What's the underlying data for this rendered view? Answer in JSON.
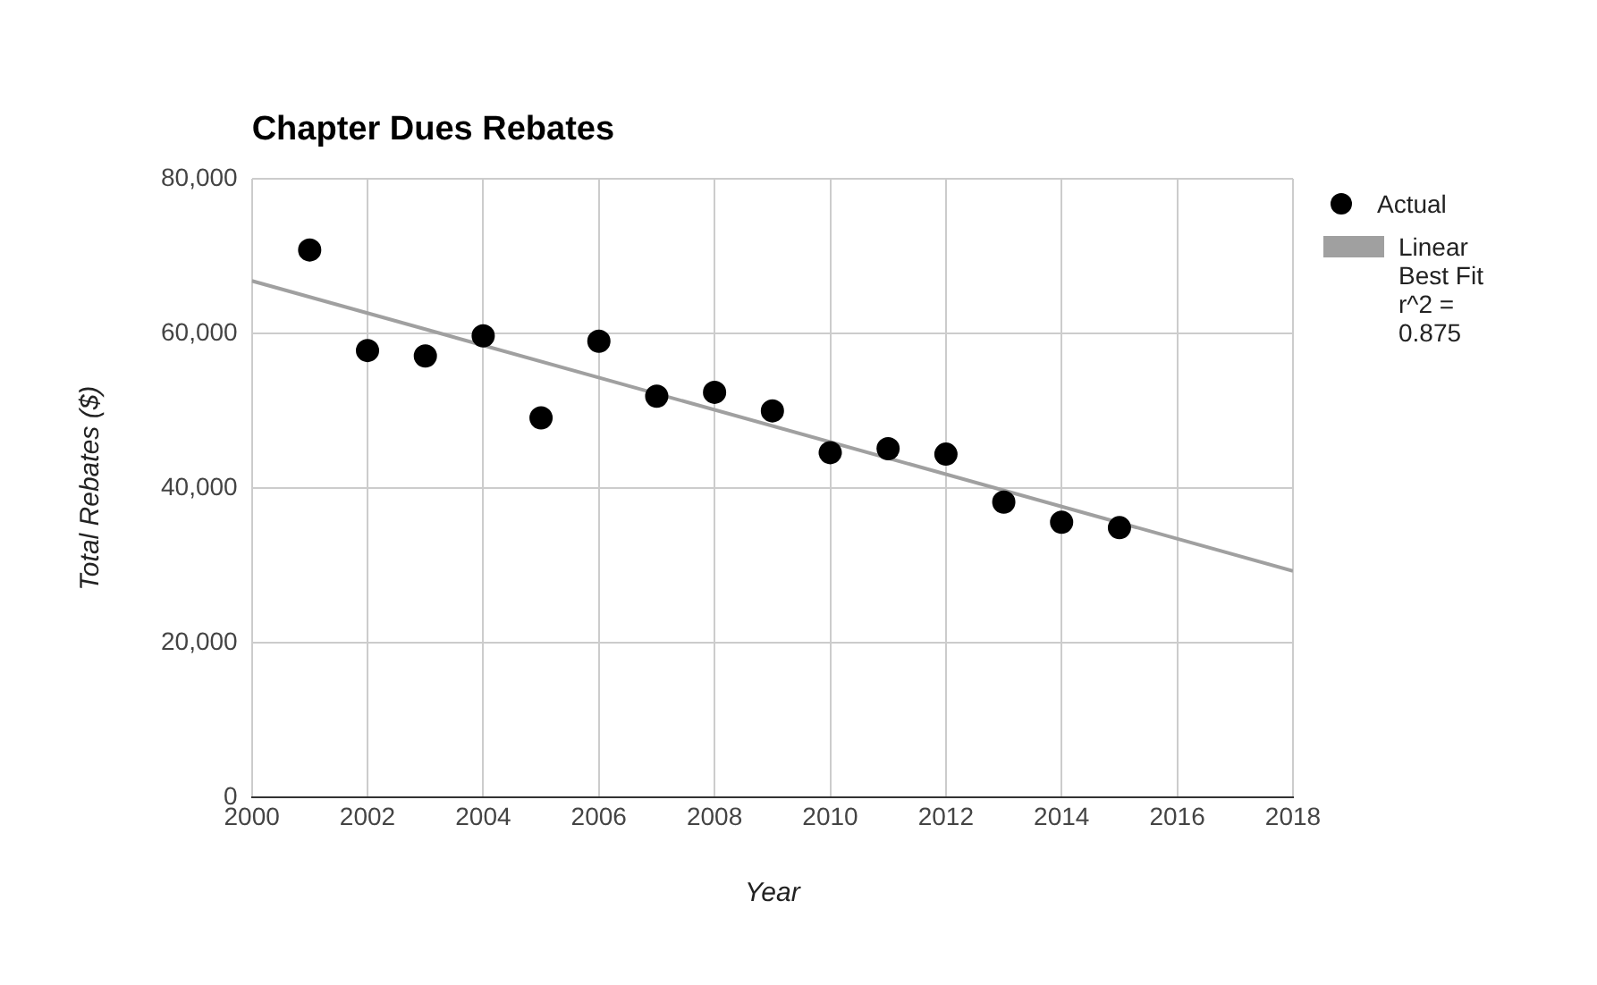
{
  "chart_data": {
    "type": "scatter",
    "title": "Chapter Dues Rebates",
    "xlabel": "Year",
    "ylabel": "Total Rebates ($)",
    "xlim": [
      2000,
      2018
    ],
    "xticks": [
      2000,
      2002,
      2004,
      2006,
      2008,
      2010,
      2012,
      2014,
      2016,
      2018
    ],
    "ylim": [
      0,
      80000
    ],
    "yticks": [
      {
        "value": 0,
        "label": "0"
      },
      {
        "value": 20000,
        "label": "20,000"
      },
      {
        "value": 40000,
        "label": "40,000"
      },
      {
        "value": 60000,
        "label": "60,000"
      },
      {
        "value": 80000,
        "label": "80,000"
      }
    ],
    "grid": true,
    "legend": "right",
    "series": [
      {
        "name": "Actual",
        "type": "scatter",
        "marker": "circle",
        "color": "#000000",
        "x": [
          2001,
          2002,
          2003,
          2004,
          2005,
          2006,
          2007,
          2008,
          2009,
          2010,
          2011,
          2012,
          2013,
          2014,
          2015
        ],
        "values": [
          70800,
          57800,
          57100,
          59700,
          49100,
          59000,
          51900,
          52400,
          50000,
          44600,
          45100,
          44400,
          38200,
          35600,
          34900
        ]
      },
      {
        "name": "Linear Best Fit r^2 = 0.875",
        "type": "line",
        "marker": "none",
        "color": "#a0a0a0",
        "x": [
          2000,
          2018
        ],
        "values": [
          66800,
          29300
        ]
      }
    ]
  }
}
